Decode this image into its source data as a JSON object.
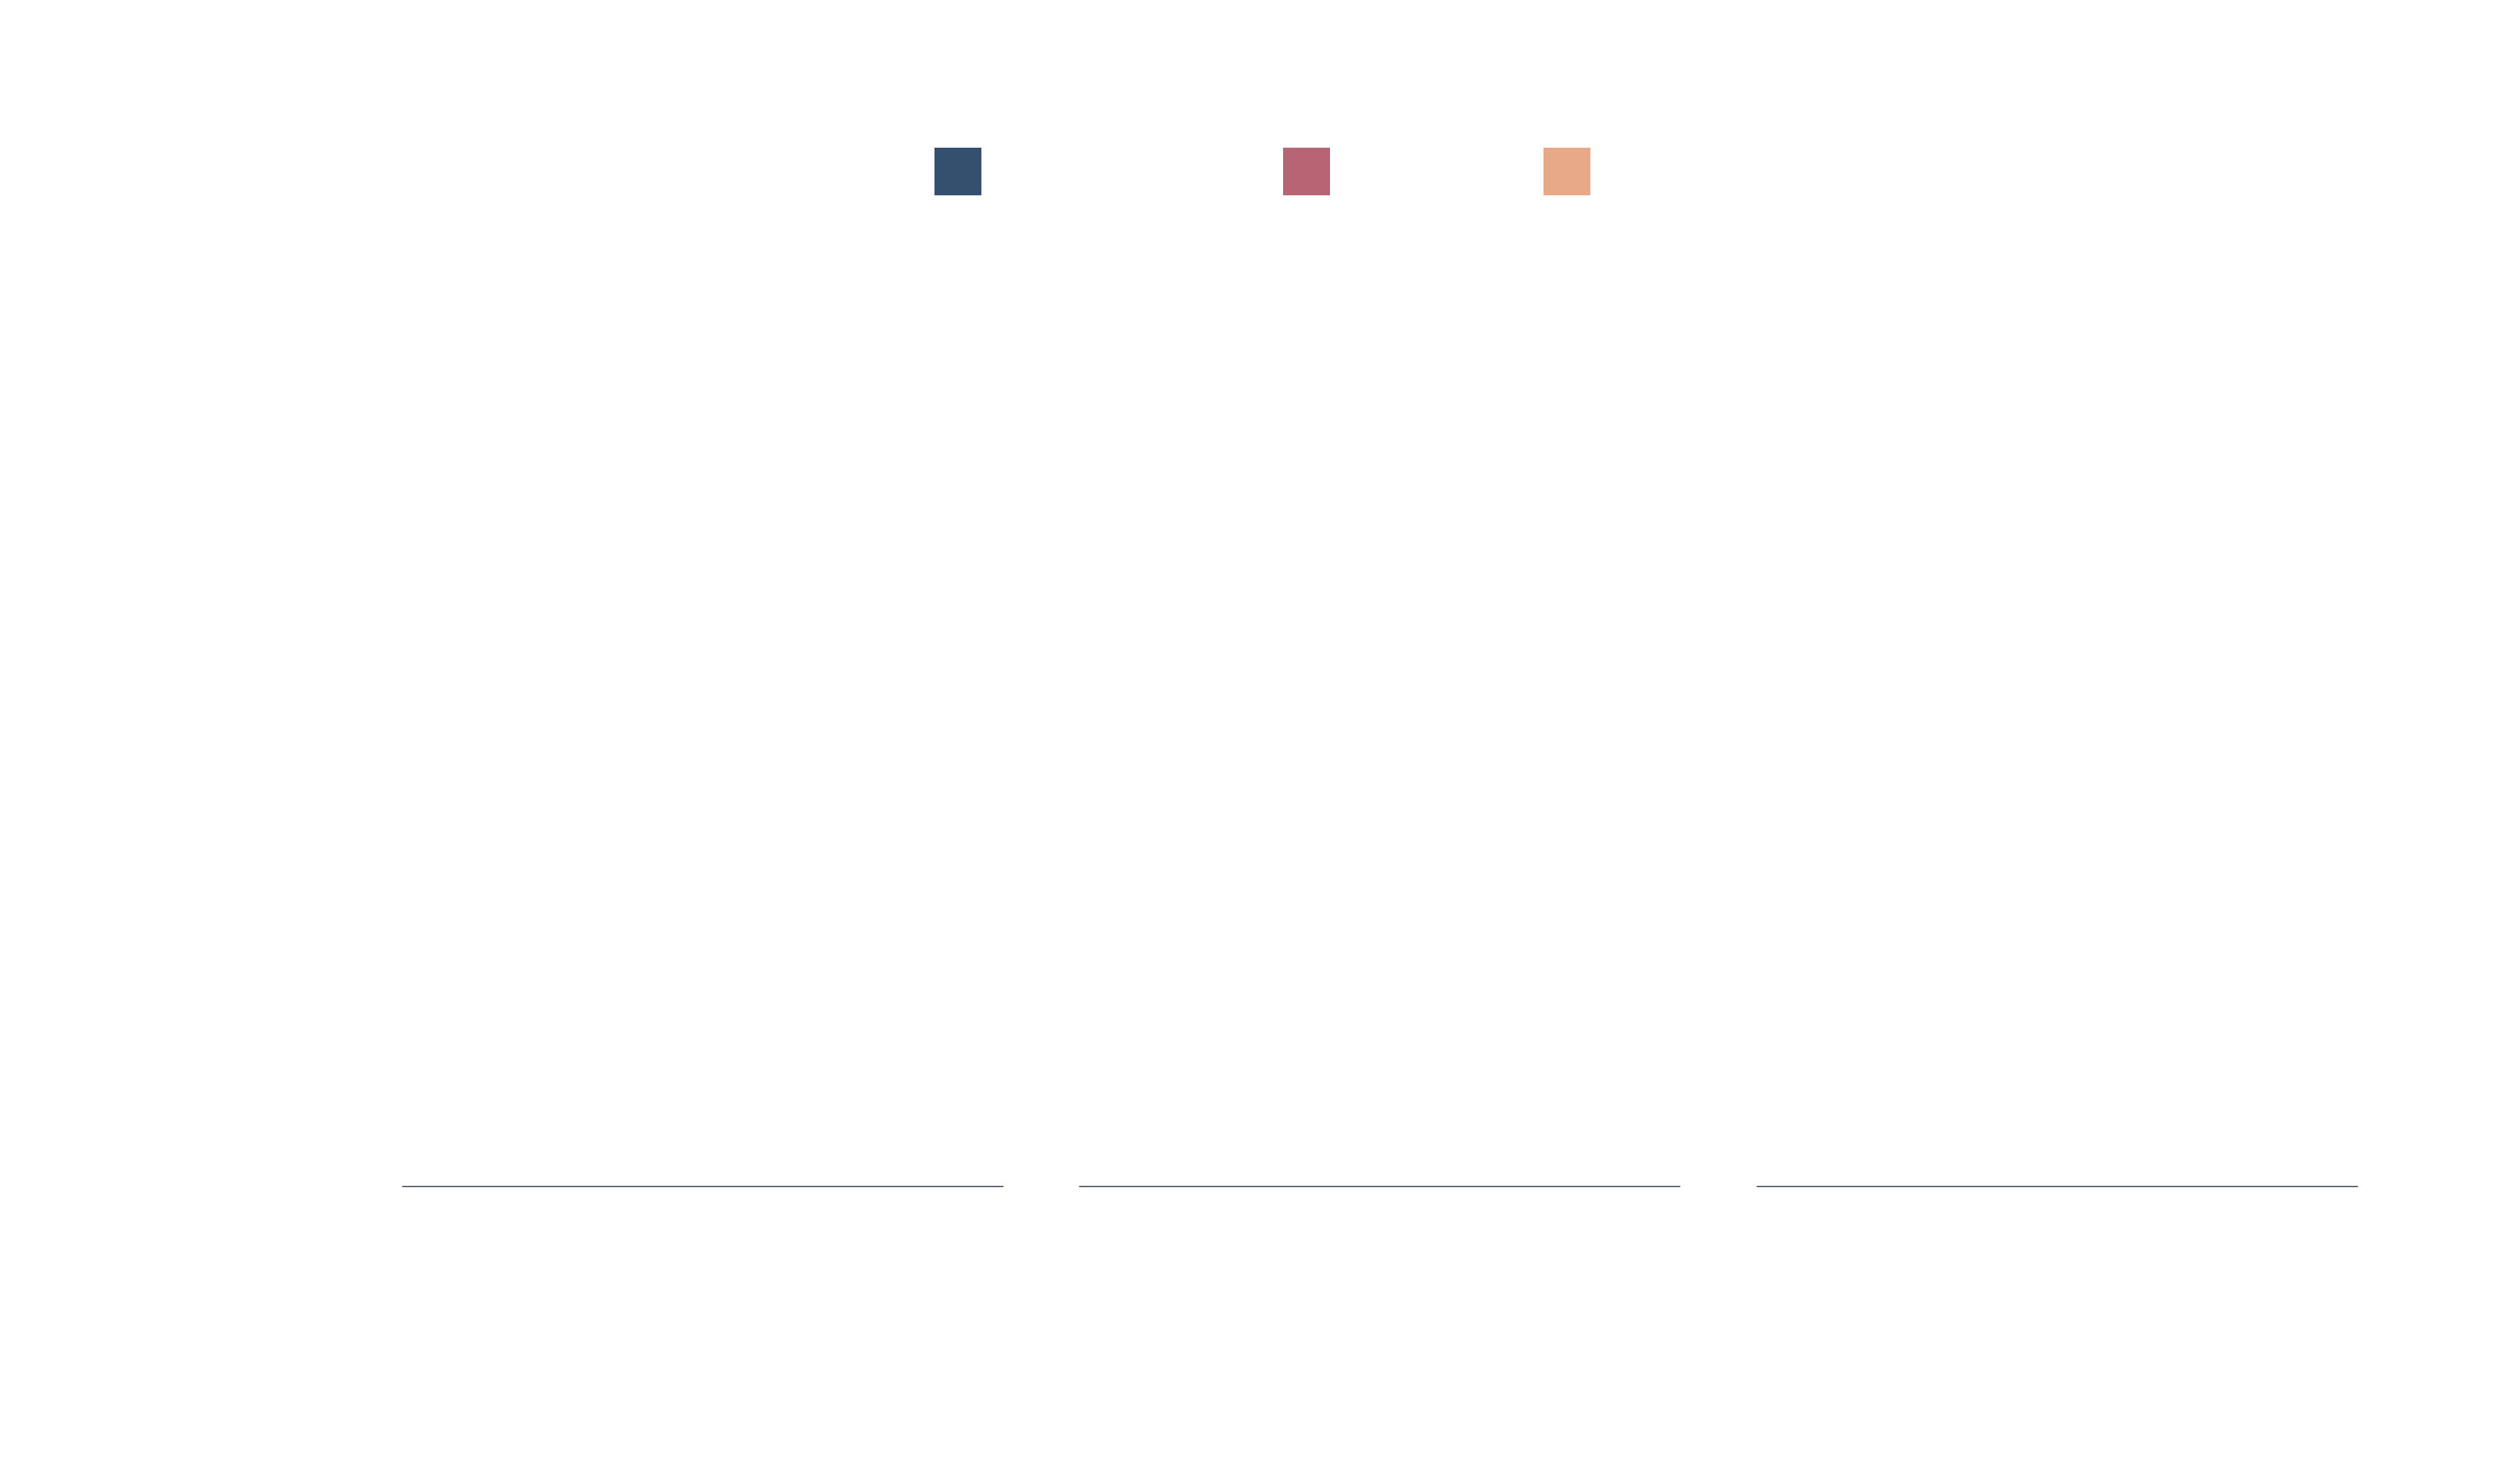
{
  "chart_data": {
    "type": "area",
    "stacked": true,
    "panels": 3,
    "series": [
      {
        "color": "#35506f",
        "panels": [
          [
            0.0,
            0.0,
            0.0,
            0.0,
            0.0,
            0.0,
            0.0,
            0.0,
            0.0,
            0.0,
            0.0,
            0.0,
            0.0,
            0.0,
            0.0,
            0.0,
            0.0,
            0.0,
            0.0,
            0.0,
            0.0,
            0.0,
            0.0,
            0.0,
            0.0,
            0.0,
            0.0,
            0.0,
            0.0,
            0.0,
            0.0,
            0.0,
            0.0,
            0.0,
            0.0,
            0.0,
            0.0,
            0.0,
            0.0,
            0.0,
            0.0,
            0.0,
            0.0,
            0.0,
            0.0,
            0.0,
            0.0,
            0.0,
            0.0,
            0.0,
            0.0,
            0.0,
            0.0,
            0.0,
            0.0,
            0.0,
            0.0,
            0.0,
            0.0,
            0.0,
            0.0,
            0.0
          ],
          [
            0.0,
            0.0,
            0.0,
            0.0,
            0.0,
            0.0,
            0.0,
            0.0,
            0.0,
            0.0,
            0.0,
            0.0,
            0.0,
            0.0,
            0.0,
            0.0,
            0.0,
            0.0,
            0.0,
            0.0,
            0.0,
            0.0,
            0.0,
            0.0,
            0.0,
            0.0,
            0.0,
            0.0,
            0.0,
            0.0,
            0.0,
            0.0,
            0.0,
            0.0,
            0.0,
            0.0,
            0.0,
            0.0,
            0.0,
            0.0,
            0.0,
            0.0,
            0.0,
            0.0,
            0.0,
            0.0,
            0.0,
            0.0,
            0.0,
            0.0,
            0.0,
            0.0,
            0.0,
            0.0,
            0.0,
            0.0,
            0.0,
            0.0,
            0.0,
            0.0,
            0.0,
            0.0
          ],
          [
            0.0,
            0.0,
            0.0,
            0.0,
            0.0,
            0.0,
            0.0,
            0.0,
            0.0,
            0.0,
            0.0,
            0.0,
            0.0,
            0.0,
            0.0,
            0.0,
            0.0,
            0.0,
            0.0,
            0.0,
            0.0,
            0.0,
            0.0,
            0.0,
            0.0,
            0.0,
            0.0,
            0.0,
            0.0,
            0.0,
            0.0,
            0.0,
            0.0,
            0.0,
            0.0,
            0.0,
            0.0,
            0.0,
            0.0,
            0.0,
            0.0,
            0.0,
            0.0,
            0.0,
            0.0,
            0.0,
            0.0,
            0.0,
            0.0,
            0.0,
            0.0,
            0.0,
            0.0,
            0.0,
            0.0,
            0.0,
            0.0,
            0.0,
            0.0,
            0.0,
            0.0,
            0.0
          ]
        ]
      },
      {
        "color": "#b76575",
        "panels": [
          [
            0.0,
            0.0,
            0.0,
            0.0,
            0.0,
            0.0,
            0.0,
            0.0,
            0.0,
            0.0,
            0.0,
            0.0,
            0.0,
            0.0,
            0.0,
            0.0,
            0.0,
            0.0,
            0.0,
            0.0,
            0.0,
            0.0,
            0.0,
            0.0,
            0.0,
            0.0,
            0.0,
            0.0,
            0.0,
            0.0,
            0.0,
            0.0,
            0.0,
            0.0,
            0.0,
            0.0,
            0.0,
            0.0,
            0.0,
            0.0,
            0.0,
            0.0,
            0.0,
            0.0,
            0.0,
            0.0,
            0.0,
            0.0,
            0.0,
            0.0,
            0.0,
            0.0,
            0.0,
            0.0,
            0.0,
            0.0,
            0.0,
            0.0,
            0.0,
            0.0,
            0.0,
            0.0
          ],
          [
            0.0,
            0.0,
            0.0,
            0.0,
            0.0,
            0.0,
            0.0,
            0.0,
            0.0,
            0.0,
            0.0,
            0.0,
            0.0,
            0.0,
            0.0,
            0.0,
            0.0,
            0.0,
            0.0,
            0.0,
            0.0,
            0.0,
            0.0,
            0.0,
            0.0,
            0.0,
            0.0,
            0.0,
            0.0,
            0.0,
            0.0,
            0.0,
            0.0,
            0.0,
            0.0,
            0.0,
            0.0,
            0.0,
            0.0,
            0.0,
            0.0,
            0.0,
            0.0,
            0.0,
            0.0,
            0.0,
            0.0,
            0.0,
            0.0,
            0.0,
            0.0,
            0.0,
            0.0,
            0.0,
            0.0,
            0.0,
            0.0,
            0.0,
            0.0,
            0.0,
            0.0,
            0.0
          ],
          [
            0.0,
            0.0,
            0.0,
            0.0,
            0.0,
            0.0,
            0.0,
            0.0,
            0.0,
            0.0,
            0.0,
            0.0,
            0.0,
            0.0,
            0.0,
            0.0,
            0.0,
            0.0,
            0.0,
            0.0,
            0.0,
            0.0,
            0.0,
            0.0,
            0.0,
            0.0,
            0.0,
            0.0,
            0.0,
            0.0,
            0.0,
            0.0,
            0.0,
            0.0,
            0.0,
            0.0,
            0.0,
            0.0,
            0.0,
            0.0,
            0.0,
            0.0,
            0.0,
            0.0,
            0.0,
            0.0,
            0.0,
            0.0,
            0.0,
            0.0,
            0.0,
            0.0,
            0.0,
            0.0,
            0.0,
            0.0,
            0.0,
            0.0,
            0.0,
            0.0,
            0.0,
            0.0
          ]
        ]
      },
      {
        "color": "#e8a989",
        "panels": [
          [
            0.0,
            0.0,
            0.0,
            0.0,
            0.0,
            0.0,
            0.0,
            0.0,
            0.0,
            0.0,
            0.0,
            0.0,
            0.0,
            0.0,
            0.0,
            0.0,
            0.0,
            0.0,
            0.0,
            0.0,
            0.0,
            0.0,
            0.0,
            0.0,
            0.0,
            0.0,
            0.0,
            0.0,
            0.0,
            0.0,
            0.0,
            0.0,
            0.0,
            0.0,
            0.0,
            0.0,
            0.0,
            0.0,
            0.0,
            0.0,
            0.0,
            0.0,
            0.0,
            0.0,
            0.0,
            0.0,
            0.0,
            0.0,
            0.0,
            0.0,
            0.0,
            0.0,
            0.0,
            0.0,
            0.0,
            0.0,
            0.0,
            0.0,
            0.0,
            0.0,
            0.0,
            0.0
          ],
          [
            0.0,
            0.0,
            0.0,
            0.0,
            0.0,
            0.0,
            0.0,
            0.0,
            0.0,
            0.0,
            0.0,
            0.0,
            0.0,
            0.0,
            0.0,
            0.0,
            0.0,
            0.0,
            0.0,
            0.0,
            0.0,
            0.0,
            0.0,
            0.0,
            0.0,
            0.0,
            0.0,
            0.0,
            0.0,
            0.0,
            0.0,
            0.0,
            0.0,
            0.0,
            0.0,
            0.0,
            0.0,
            0.0,
            0.0,
            0.0,
            0.0,
            0.0,
            0.0,
            0.0,
            0.0,
            0.0,
            0.0,
            0.0,
            0.0,
            0.0,
            0.0,
            0.0,
            0.0,
            0.0,
            0.0,
            0.0,
            0.0,
            0.0,
            0.0,
            0.0,
            0.0,
            0.0
          ],
          [
            0.0,
            0.0,
            0.0,
            0.0,
            0.0,
            0.0,
            0.0,
            0.0,
            0.0,
            0.0,
            0.0,
            0.0,
            0.0,
            0.0,
            0.0,
            0.0,
            0.0,
            0.0,
            0.0,
            0.0,
            0.0,
            0.0,
            0.0,
            0.0,
            0.0,
            0.0,
            0.0,
            0.0,
            0.0,
            0.0,
            0.0,
            0.0,
            0.0,
            0.0,
            0.0,
            0.0,
            0.0,
            0.0,
            0.0,
            0.0,
            0.0,
            0.0,
            0.0,
            0.0,
            0.0,
            0.0,
            0.0,
            0.0,
            0.0,
            0.0,
            0.0,
            0.0,
            0.0,
            0.0,
            0.0,
            0.0,
            0.0,
            0.0,
            0.0,
            0.0,
            0.0,
            0.0
          ]
        ]
      }
    ],
    "legend": {
      "placement": "top-center"
    },
    "grid": false,
    "axes_visible": false
  }
}
